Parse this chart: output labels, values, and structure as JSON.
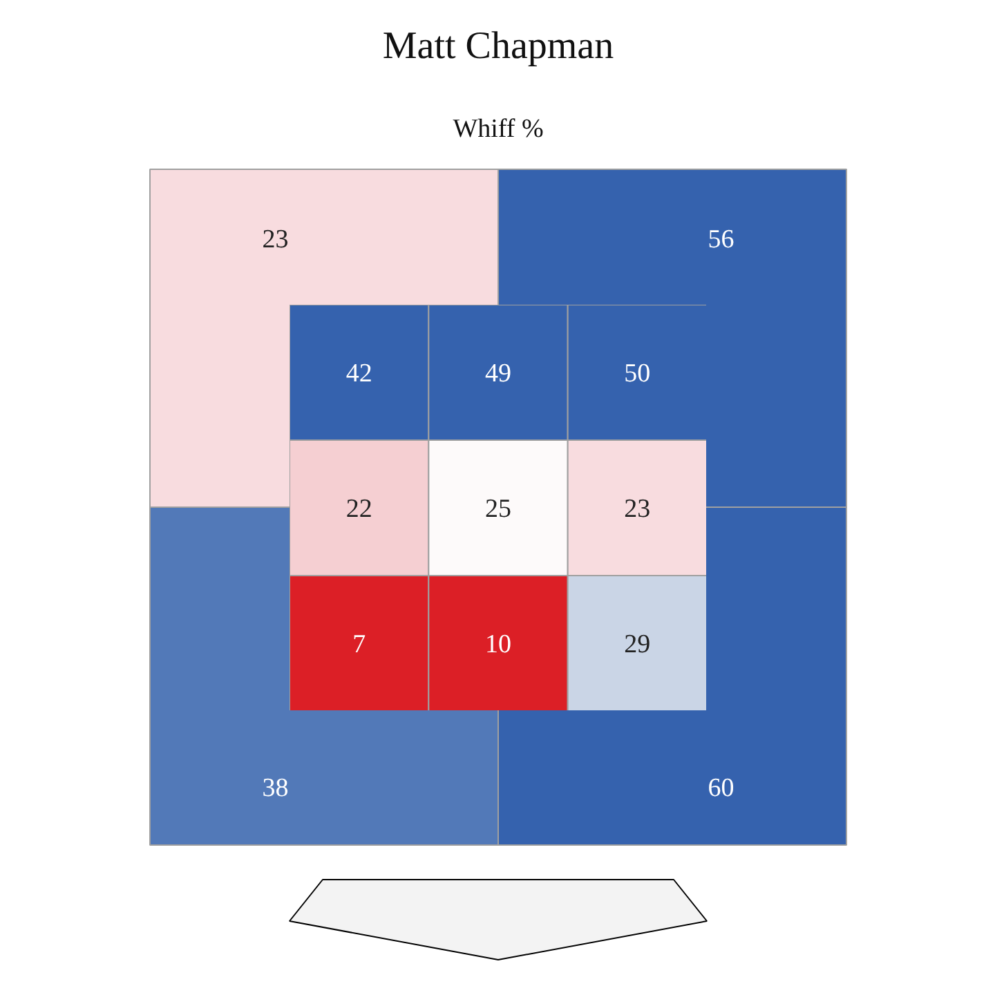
{
  "chart_data": [
    {
      "type": "heatmap",
      "title": "Matt Chapman",
      "subtitle": "Whiff %",
      "data_labels": true,
      "categories": [
        null,
        null
      ],
      "y_categories": [
        null,
        null
      ],
      "cells": [
        [
          23,
          56
        ],
        [
          38,
          60
        ]
      ],
      "colors": [
        "#f8dcdf",
        "#3562ae",
        "#5279b8",
        "#3562ae"
      ]
    },
    {
      "type": "heatmap",
      "data_labels": true,
      "categories": [
        null,
        null,
        null
      ],
      "y_categories": [
        null,
        null,
        null
      ],
      "cells": [
        [
          42,
          49,
          50
        ],
        [
          22,
          25,
          23
        ],
        [
          7,
          10,
          29
        ]
      ],
      "colors": [
        "#3562ae",
        "#3562ae",
        "#3562ae",
        "#f5cfd2",
        "#fdfafa",
        "#f8dcdf",
        "#dc1f26",
        "#dc1f26",
        "#cad5e6"
      ]
    }
  ]
}
